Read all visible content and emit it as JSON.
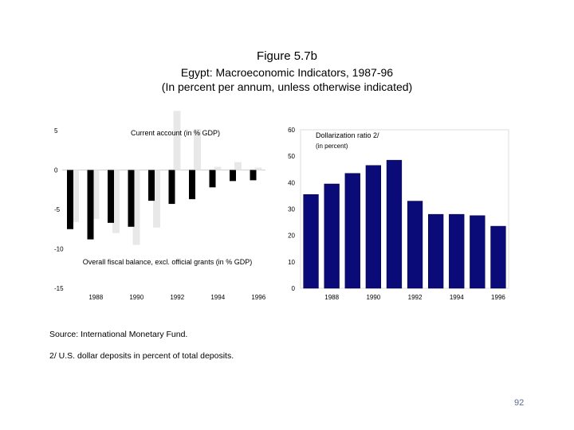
{
  "header": {
    "figure_label": "Figure 5.7b",
    "title": "Egypt: Macroeconomic Indicators, 1987-96",
    "subtitle": "(In percent per annum, unless otherwise indicated)"
  },
  "chart_data": [
    {
      "type": "bar",
      "title": "",
      "categories": [
        "1987",
        "1988",
        "1989",
        "1990",
        "1991",
        "1992",
        "1993",
        "1994",
        "1995",
        "1996"
      ],
      "x_tick_labels": [
        "1988",
        "1990",
        "1992",
        "1994",
        "1996"
      ],
      "y_tick_labels": [
        "5",
        "0",
        "-5",
        "-10",
        "-15"
      ],
      "ylim": [
        -15,
        5
      ],
      "series": [
        {
          "name": "Overall fiscal balance, excl. official grants (in % GDP)",
          "color": "#000000",
          "values": [
            -7.5,
            -8.8,
            -6.7,
            -7.2,
            -3.9,
            -4.3,
            -3.7,
            -2.2,
            -1.4,
            -1.3
          ]
        },
        {
          "name": "Current account (in % GDP)",
          "color": "#e8e8e8",
          "values": [
            -6.6,
            -6.2,
            -8.0,
            -9.5,
            -7.3,
            7.5,
            5.2,
            0.4,
            1.0,
            0.3
          ]
        }
      ],
      "legend": [
        "Current account (in % GDP)",
        "Overall fiscal balance, excl. official grants (in % GDP)"
      ]
    },
    {
      "type": "bar",
      "title": "Dollarization ratio 2/",
      "subtitle": "(in percent)",
      "categories": [
        "1987",
        "1988",
        "1989",
        "1990",
        "1991",
        "1992",
        "1993",
        "1994",
        "1995",
        "1996"
      ],
      "x_tick_labels": [
        "1988",
        "1990",
        "1992",
        "1994",
        "1996"
      ],
      "y_tick_labels": [
        "60",
        "50",
        "40",
        "30",
        "20",
        "10",
        "0"
      ],
      "ylim": [
        0,
        60
      ],
      "values": [
        35.5,
        39.5,
        43.5,
        46.5,
        48.5,
        33.0,
        28.0,
        28.0,
        27.5,
        23.5
      ],
      "color": "#0a0a78"
    }
  ],
  "footer": {
    "source": "Source: International Monetary Fund.",
    "note": "2/  U.S. dollar deposits in percent of total deposits."
  },
  "page_number": "92"
}
